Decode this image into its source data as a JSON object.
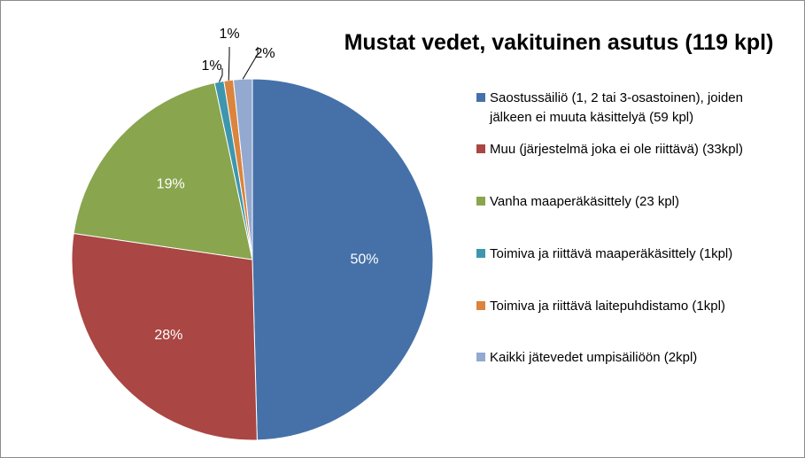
{
  "chart_data": {
    "type": "pie",
    "title": "Mustat vedet, vakituinen asutus (119 kpl)",
    "legend_position": "right",
    "slices": [
      {
        "label": "Saostussäiliö (1, 2 tai 3-osastoinen), joiden jälkeen ei muuta käsittelyä (59 kpl)",
        "legend_lines": [
          "Saostussäiliö (1, 2 tai 3-osastoinen), joiden",
          "jälkeen ei muuta käsittelyä (59 kpl)"
        ],
        "value": 59,
        "percent_label": "50%",
        "color": "#4571A8"
      },
      {
        "label": "Muu (järjestelmä joka ei ole riittävä) (33kpl)",
        "legend_lines": [
          "Muu (järjestelmä joka ei ole riittävä) (33kpl)"
        ],
        "value": 33,
        "percent_label": "28%",
        "color": "#AA4643"
      },
      {
        "label": "Vanha maaperäkäsittely (23 kpl)",
        "legend_lines": [
          "Vanha maaperäkäsittely (23 kpl)"
        ],
        "value": 23,
        "percent_label": "19%",
        "color": "#89A54E"
      },
      {
        "label": "Toimiva ja riittävä maaperäkäsittely (1kpl)",
        "legend_lines": [
          "Toimiva ja riittävä maaperäkäsittely (1kpl)"
        ],
        "value": 1,
        "percent_label": "1%",
        "color": "#3D96AE"
      },
      {
        "label": "Toimiva ja riittävä laitepuhdistamo (1kpl)",
        "legend_lines": [
          "Toimiva ja riittävä laitepuhdistamo (1kpl)"
        ],
        "value": 1,
        "percent_label": "1%",
        "color": "#DB843D"
      },
      {
        "label": "Kaikki jätevedet umpisäiliöön (2kpl)",
        "legend_lines": [
          "Kaikki jätevedet umpisäiliöön (2kpl)"
        ],
        "value": 2,
        "percent_label": "2%",
        "color": "#93A9CF"
      }
    ]
  }
}
